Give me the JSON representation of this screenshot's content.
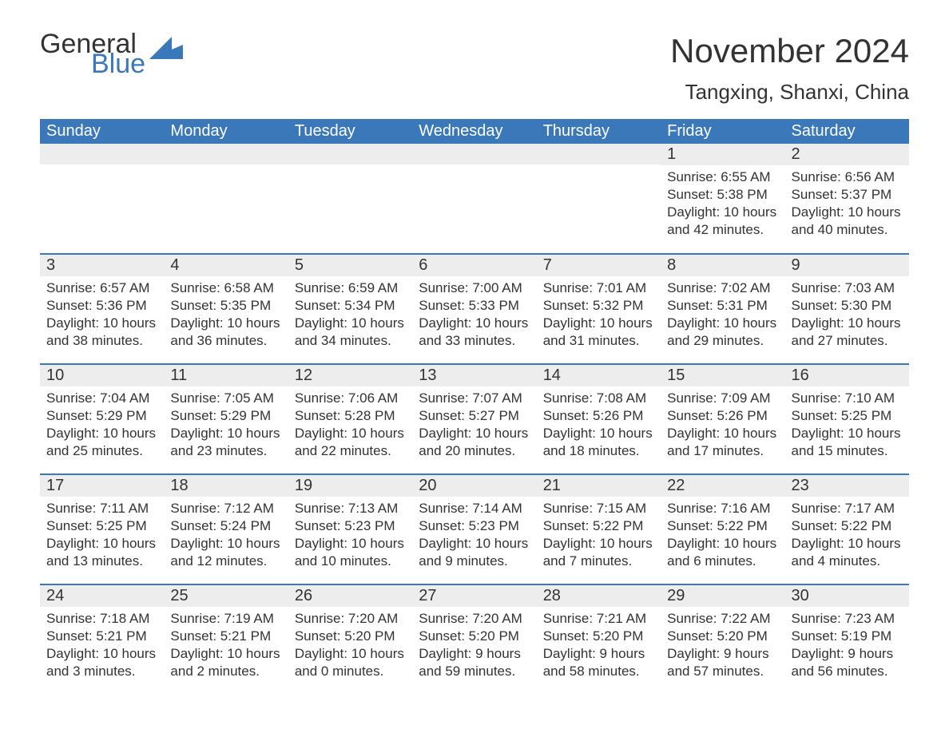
{
  "logo": {
    "word1": "General",
    "word2": "Blue"
  },
  "title": "November 2024",
  "location": "Tangxing, Shanxi, China",
  "colors": {
    "header_bg": "#3a78b9",
    "header_text": "#ffffff",
    "row_sep": "#3a78b9",
    "daynum_bg": "#ededed",
    "text": "#333333",
    "logo_accent": "#3a78b9",
    "page_bg": "#ffffff"
  },
  "typography": {
    "title_fontsize": 42,
    "location_fontsize": 26,
    "dayheader_fontsize": 20,
    "daynum_fontsize": 20,
    "body_fontsize": 17
  },
  "day_headers": [
    "Sunday",
    "Monday",
    "Tuesday",
    "Wednesday",
    "Thursday",
    "Friday",
    "Saturday"
  ],
  "weeks": [
    [
      null,
      null,
      null,
      null,
      null,
      {
        "n": 1,
        "sr": "6:55 AM",
        "ss": "5:38 PM",
        "dl": "10 hours and 42 minutes."
      },
      {
        "n": 2,
        "sr": "6:56 AM",
        "ss": "5:37 PM",
        "dl": "10 hours and 40 minutes."
      }
    ],
    [
      {
        "n": 3,
        "sr": "6:57 AM",
        "ss": "5:36 PM",
        "dl": "10 hours and 38 minutes."
      },
      {
        "n": 4,
        "sr": "6:58 AM",
        "ss": "5:35 PM",
        "dl": "10 hours and 36 minutes."
      },
      {
        "n": 5,
        "sr": "6:59 AM",
        "ss": "5:34 PM",
        "dl": "10 hours and 34 minutes."
      },
      {
        "n": 6,
        "sr": "7:00 AM",
        "ss": "5:33 PM",
        "dl": "10 hours and 33 minutes."
      },
      {
        "n": 7,
        "sr": "7:01 AM",
        "ss": "5:32 PM",
        "dl": "10 hours and 31 minutes."
      },
      {
        "n": 8,
        "sr": "7:02 AM",
        "ss": "5:31 PM",
        "dl": "10 hours and 29 minutes."
      },
      {
        "n": 9,
        "sr": "7:03 AM",
        "ss": "5:30 PM",
        "dl": "10 hours and 27 minutes."
      }
    ],
    [
      {
        "n": 10,
        "sr": "7:04 AM",
        "ss": "5:29 PM",
        "dl": "10 hours and 25 minutes."
      },
      {
        "n": 11,
        "sr": "7:05 AM",
        "ss": "5:29 PM",
        "dl": "10 hours and 23 minutes."
      },
      {
        "n": 12,
        "sr": "7:06 AM",
        "ss": "5:28 PM",
        "dl": "10 hours and 22 minutes."
      },
      {
        "n": 13,
        "sr": "7:07 AM",
        "ss": "5:27 PM",
        "dl": "10 hours and 20 minutes."
      },
      {
        "n": 14,
        "sr": "7:08 AM",
        "ss": "5:26 PM",
        "dl": "10 hours and 18 minutes."
      },
      {
        "n": 15,
        "sr": "7:09 AM",
        "ss": "5:26 PM",
        "dl": "10 hours and 17 minutes."
      },
      {
        "n": 16,
        "sr": "7:10 AM",
        "ss": "5:25 PM",
        "dl": "10 hours and 15 minutes."
      }
    ],
    [
      {
        "n": 17,
        "sr": "7:11 AM",
        "ss": "5:25 PM",
        "dl": "10 hours and 13 minutes."
      },
      {
        "n": 18,
        "sr": "7:12 AM",
        "ss": "5:24 PM",
        "dl": "10 hours and 12 minutes."
      },
      {
        "n": 19,
        "sr": "7:13 AM",
        "ss": "5:23 PM",
        "dl": "10 hours and 10 minutes."
      },
      {
        "n": 20,
        "sr": "7:14 AM",
        "ss": "5:23 PM",
        "dl": "10 hours and 9 minutes."
      },
      {
        "n": 21,
        "sr": "7:15 AM",
        "ss": "5:22 PM",
        "dl": "10 hours and 7 minutes."
      },
      {
        "n": 22,
        "sr": "7:16 AM",
        "ss": "5:22 PM",
        "dl": "10 hours and 6 minutes."
      },
      {
        "n": 23,
        "sr": "7:17 AM",
        "ss": "5:22 PM",
        "dl": "10 hours and 4 minutes."
      }
    ],
    [
      {
        "n": 24,
        "sr": "7:18 AM",
        "ss": "5:21 PM",
        "dl": "10 hours and 3 minutes."
      },
      {
        "n": 25,
        "sr": "7:19 AM",
        "ss": "5:21 PM",
        "dl": "10 hours and 2 minutes."
      },
      {
        "n": 26,
        "sr": "7:20 AM",
        "ss": "5:20 PM",
        "dl": "10 hours and 0 minutes."
      },
      {
        "n": 27,
        "sr": "7:20 AM",
        "ss": "5:20 PM",
        "dl": "9 hours and 59 minutes."
      },
      {
        "n": 28,
        "sr": "7:21 AM",
        "ss": "5:20 PM",
        "dl": "9 hours and 58 minutes."
      },
      {
        "n": 29,
        "sr": "7:22 AM",
        "ss": "5:20 PM",
        "dl": "9 hours and 57 minutes."
      },
      {
        "n": 30,
        "sr": "7:23 AM",
        "ss": "5:19 PM",
        "dl": "9 hours and 56 minutes."
      }
    ]
  ],
  "labels": {
    "sunrise": "Sunrise:",
    "sunset": "Sunset:",
    "daylight": "Daylight:"
  }
}
